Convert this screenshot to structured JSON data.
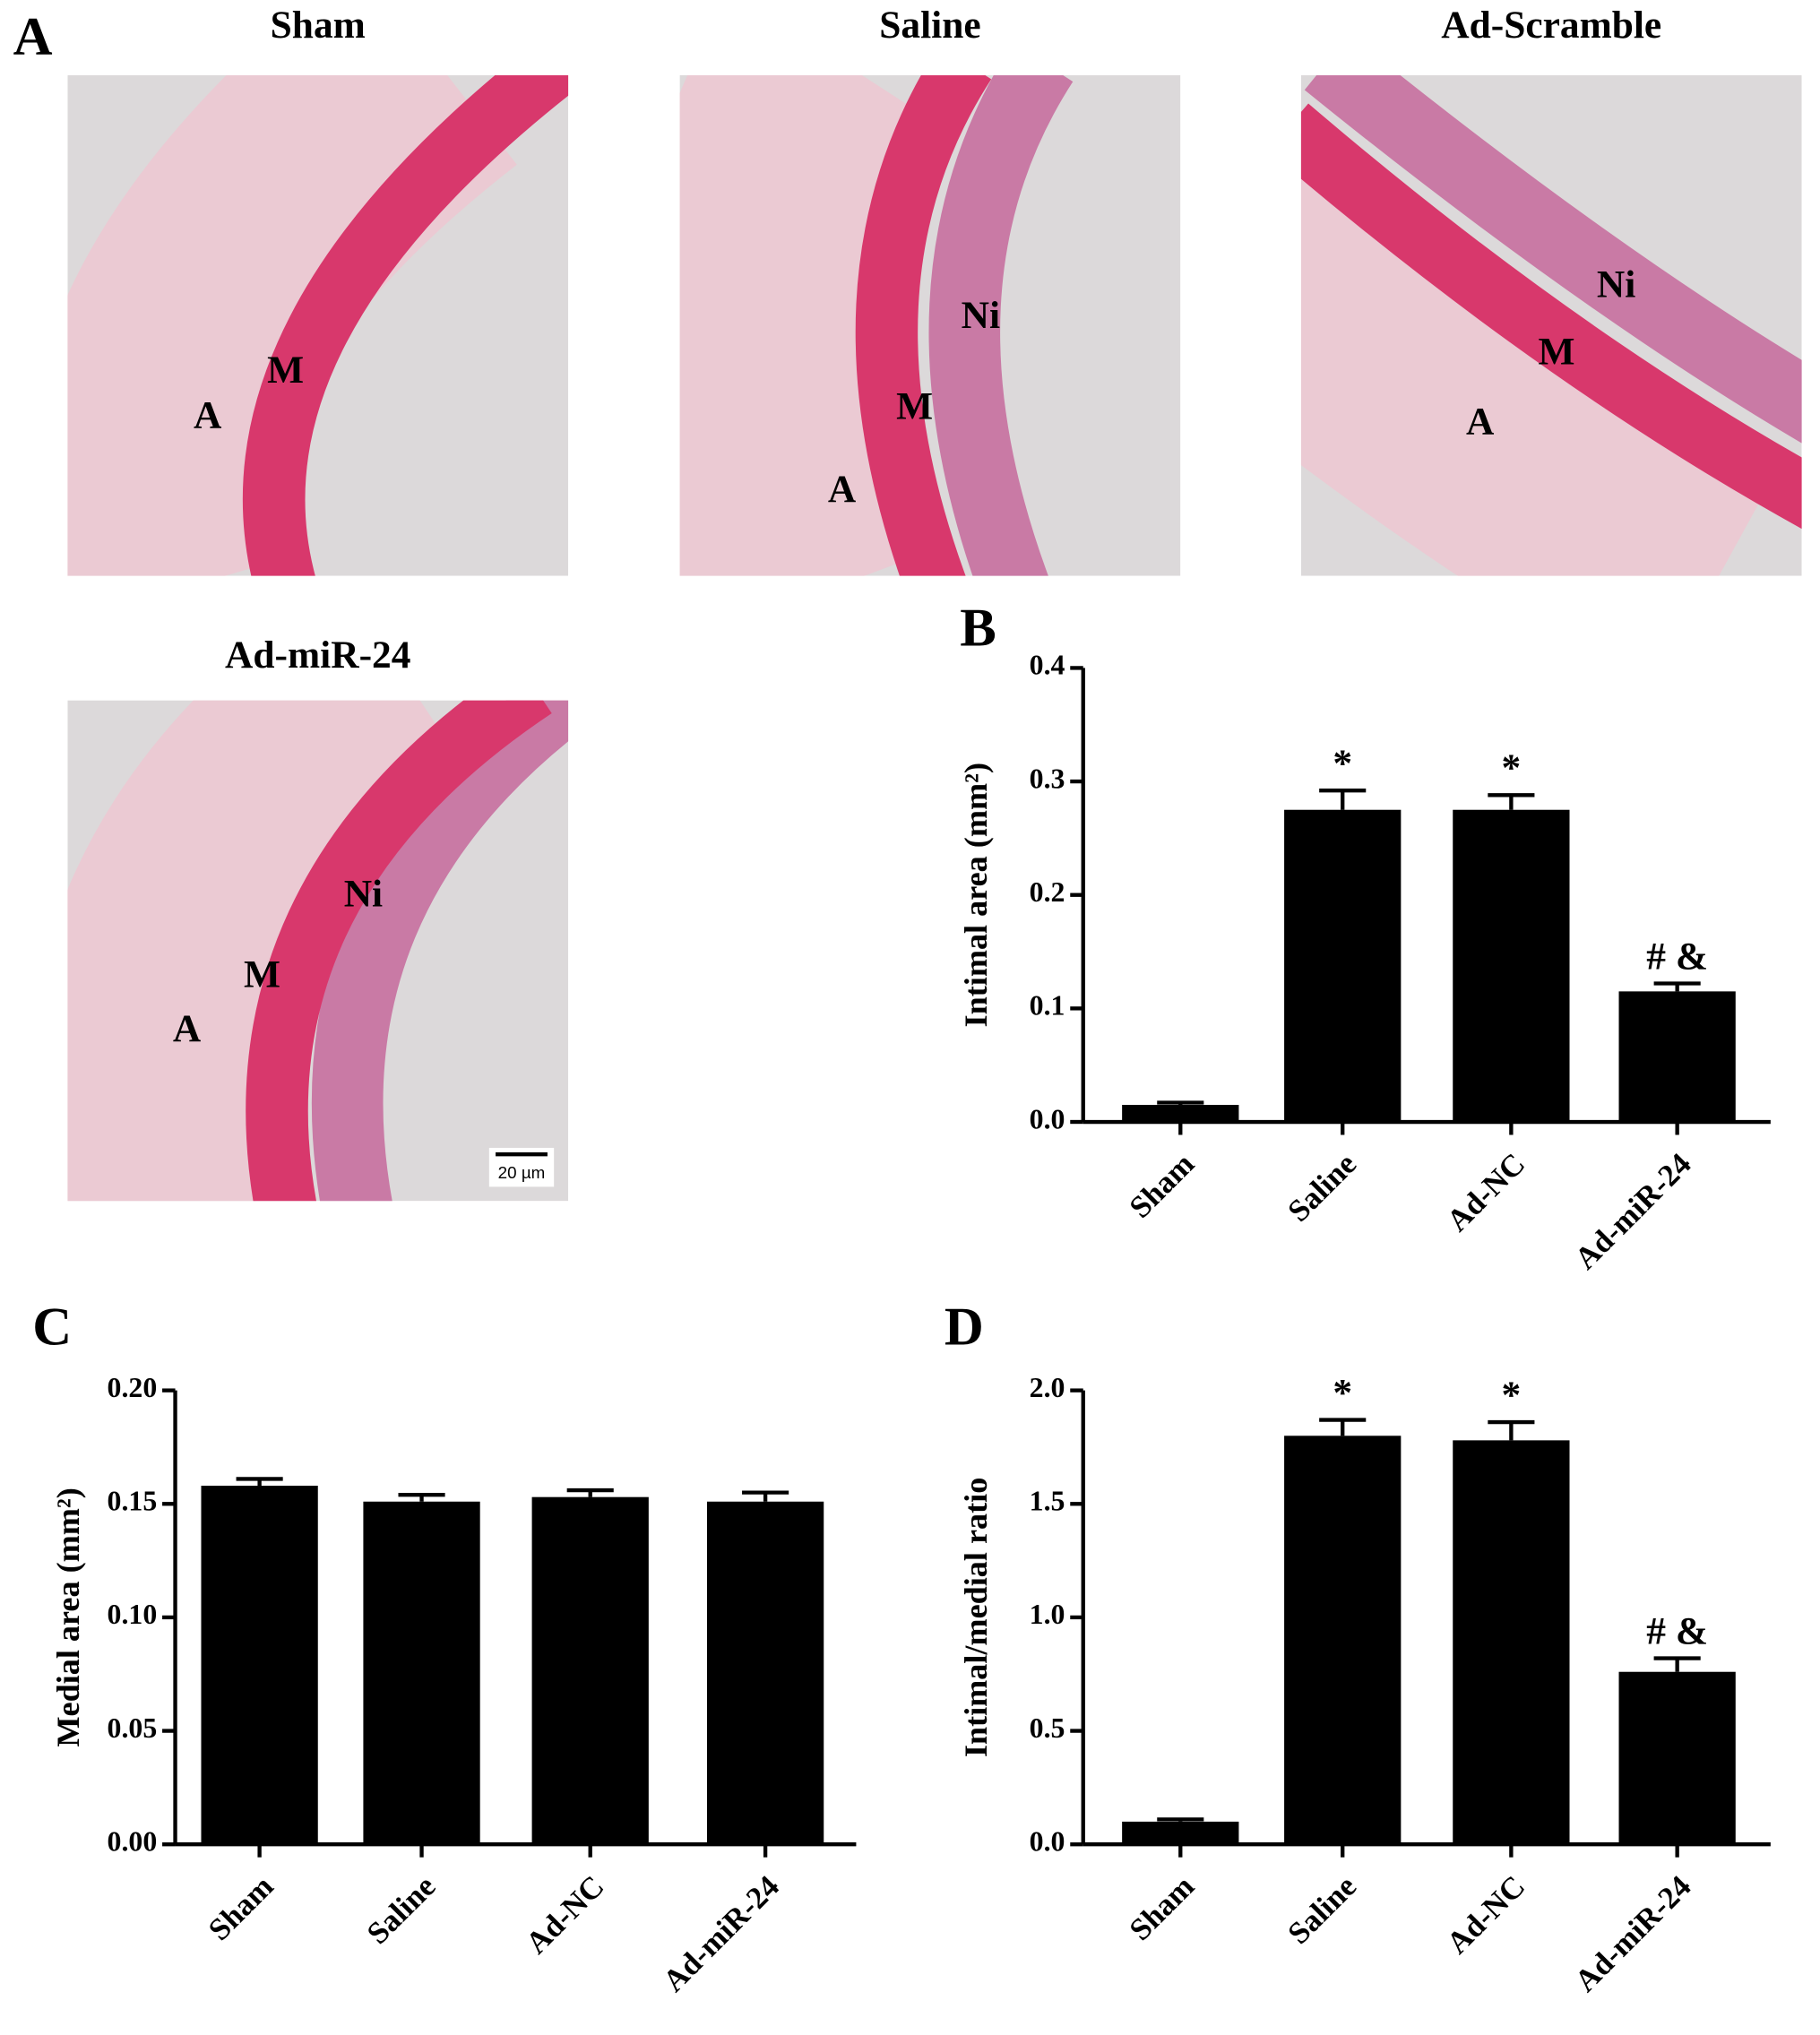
{
  "panel_a": {
    "label": "A",
    "scale_bar": "20 µm",
    "micrographs": [
      {
        "title": "Sham",
        "labels": [
          "M",
          "A"
        ]
      },
      {
        "title": "Saline",
        "labels": [
          "Ni",
          "M",
          "A"
        ]
      },
      {
        "title": "Ad-Scramble",
        "labels": [
          "Ni",
          "M",
          "A"
        ]
      },
      {
        "title": "Ad-miR-24",
        "labels": [
          "Ni",
          "M",
          "A"
        ]
      }
    ]
  },
  "chart_data": [
    {
      "type": "bar",
      "label": "B",
      "ylabel": "Intimal area (mm²)",
      "color": "#000000",
      "categories": [
        "Sham",
        "Saline",
        "Ad-NC",
        "Ad-miR-24"
      ],
      "values": [
        0.015,
        0.275,
        0.275,
        0.115
      ],
      "errors": [
        0.002,
        0.017,
        0.013,
        0.007
      ],
      "annotations": [
        null,
        "*",
        "*",
        "# &"
      ],
      "ylim": [
        0,
        0.4
      ],
      "yticks": [
        {
          "value": 0,
          "label": "0.0"
        },
        0.1,
        0.2,
        0.3,
        0.4
      ]
    },
    {
      "type": "bar",
      "label": "C",
      "ylabel": "Medial area (mm²)",
      "color": "#000000",
      "categories": [
        "Sham",
        "Saline",
        "Ad-NC",
        "Ad-miR-24"
      ],
      "values": [
        0.158,
        0.151,
        0.153,
        0.151
      ],
      "errors": [
        0.003,
        0.003,
        0.003,
        0.004
      ],
      "ylim": [
        0,
        0.2
      ],
      "yticks": [
        {
          "value": 0,
          "label": "0.00"
        },
        {
          "value": 0.05,
          "label": "0.05"
        },
        {
          "value": 0.1,
          "label": "0.10"
        },
        {
          "value": 0.15,
          "label": "0.15"
        },
        {
          "value": 0.2,
          "label": "0.20"
        }
      ]
    },
    {
      "type": "bar",
      "label": "D",
      "ylabel": "Intimal/medial ratio",
      "color": "#000000",
      "categories": [
        "Sham",
        "Saline",
        "Ad-NC",
        "Ad-miR-24"
      ],
      "values": [
        0.1,
        1.8,
        1.78,
        0.76
      ],
      "errors": [
        0.01,
        0.07,
        0.08,
        0.06
      ],
      "annotations": [
        null,
        "*",
        "*",
        "# &"
      ],
      "ylim": [
        0,
        2
      ],
      "yticks": [
        {
          "value": 0,
          "label": "0.0"
        },
        0.5,
        {
          "value": 1,
          "label": "1.0"
        },
        1.5,
        {
          "value": 2,
          "label": "2.0"
        }
      ]
    }
  ]
}
